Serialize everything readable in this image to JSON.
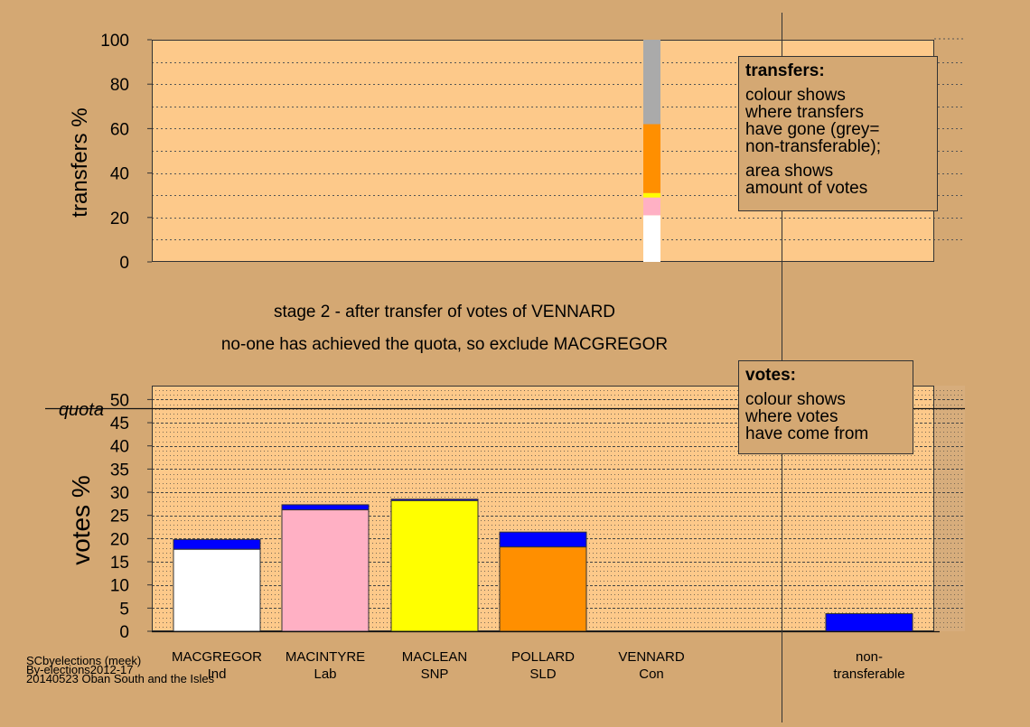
{
  "colors": {
    "background": "#d4a873",
    "plot": "#fdc98a",
    "white": "#ffffff",
    "pink": "#ffb0c4",
    "yellow": "#ffff00",
    "orange": "#ff8f00",
    "grey": "#aaaaaa",
    "blue": "#0000ff"
  },
  "stage_title": "stage 2 - after transfer of votes of VENNARD",
  "stage_note": "no-one has achieved the quota, so exclude MACGREGOR",
  "transfers_box": {
    "title": "transfers:",
    "line1": "colour shows",
    "line2": "where transfers",
    "line3": "have gone (grey=",
    "line4": "non-transferable);",
    "line5": "area shows",
    "line6": "amount of votes"
  },
  "votes_box": {
    "title": "votes:",
    "line1": "colour shows",
    "line2": "where votes",
    "line3": "have come from"
  },
  "credits": {
    "line1": "SCbyelections (meek)",
    "line2": "By-elections2012-17",
    "line3": "20140523 Oban South and the Isles"
  },
  "chart_data": [
    {
      "type": "bar",
      "ylabel": "transfers %",
      "ylim": [
        0,
        100
      ],
      "yticks": [
        0,
        20,
        40,
        60,
        80,
        100
      ],
      "bar_column": "VENNARD",
      "segments": [
        {
          "to": "MACGREGOR",
          "color": "white",
          "value": 21
        },
        {
          "to": "MACINTYRE",
          "color": "pink",
          "value": 8
        },
        {
          "to": "MACLEAN",
          "color": "yellow",
          "value": 2
        },
        {
          "to": "POLLARD",
          "color": "orange",
          "value": 31
        },
        {
          "to": "non-transferable",
          "color": "grey",
          "value": 38
        }
      ]
    },
    {
      "type": "bar",
      "ylabel": "votes %",
      "ylim": [
        0,
        53
      ],
      "yticks": [
        0,
        5,
        10,
        15,
        20,
        25,
        30,
        35,
        40,
        45,
        50
      ],
      "quota_label": "quota",
      "quota": 48.2,
      "categories": [
        {
          "name": "MACGREGOR",
          "party": "Ind",
          "base": 17.7,
          "base_color": "white",
          "transfer": 2.1
        },
        {
          "name": "MACINTYRE",
          "party": "Lab",
          "base": 26.2,
          "base_color": "pink",
          "transfer": 1.1
        },
        {
          "name": "MACLEAN",
          "party": "SNP",
          "base": 28.2,
          "base_color": "yellow",
          "transfer": 0.3
        },
        {
          "name": "POLLARD",
          "party": "SLD",
          "base": 18.2,
          "base_color": "orange",
          "transfer": 3.2
        },
        {
          "name": "VENNARD",
          "party": "Con",
          "base": 0,
          "base_color": "blue",
          "transfer": 0
        }
      ],
      "nontransferable_label1": "non-",
      "nontransferable_label2": "transferable",
      "nontransferable": 3.8
    }
  ]
}
